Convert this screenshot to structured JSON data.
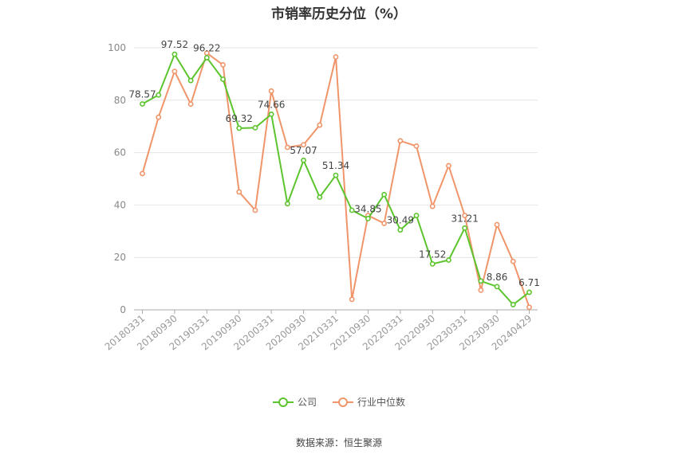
{
  "chart_data": {
    "type": "line",
    "title": "市销率历史分位（%）",
    "ylim": [
      0,
      100
    ],
    "yticks": [
      0,
      20,
      40,
      60,
      80,
      100
    ],
    "x_tick_labels": [
      "20180331",
      "20180930",
      "20190331",
      "20190930",
      "20200331",
      "20200930",
      "20210331",
      "20210930",
      "20220331",
      "20220930",
      "20230331",
      "20230930",
      "20240429"
    ],
    "x": [
      "20180331",
      "20180630",
      "20180930",
      "20181231",
      "20190331",
      "20190630",
      "20190930",
      "20191231",
      "20200331",
      "20200630",
      "20200930",
      "20201231",
      "20210331",
      "20210630",
      "20210930",
      "20211231",
      "20220331",
      "20220630",
      "20220930",
      "20221231",
      "20230331",
      "20230630",
      "20230930",
      "20231231",
      "20240429"
    ],
    "grid": true,
    "legend_position": "bottom",
    "series": [
      {
        "name": "公司",
        "color": "#5cc42d",
        "values": [
          78.57,
          82.0,
          97.52,
          87.5,
          96.22,
          88.0,
          69.32,
          69.5,
          74.66,
          40.5,
          57.07,
          43.0,
          51.34,
          38.0,
          34.85,
          44.0,
          30.49,
          36.0,
          17.52,
          19.0,
          31.21,
          11.0,
          8.86,
          2.0,
          6.71
        ],
        "data_labels": {
          "0": "78.57",
          "2": "97.52",
          "4": "96.22",
          "6": "69.32",
          "8": "74.66",
          "10": "57.07",
          "12": "51.34",
          "14": "34.85",
          "16": "30.49",
          "18": "17.52",
          "20": "31.21",
          "22": "8.86",
          "24": "6.71"
        }
      },
      {
        "name": "行业中位数",
        "color": "#f0956a",
        "values": [
          52.0,
          73.5,
          91.0,
          78.5,
          98.0,
          93.5,
          45.0,
          38.0,
          83.5,
          62.0,
          63.0,
          70.5,
          96.5,
          4.0,
          36.0,
          33.0,
          64.5,
          62.5,
          39.5,
          55.0,
          36.0,
          7.5,
          32.5,
          18.5,
          1.0
        ]
      }
    ]
  },
  "footer": {
    "source": "数据来源：恒生聚源"
  }
}
